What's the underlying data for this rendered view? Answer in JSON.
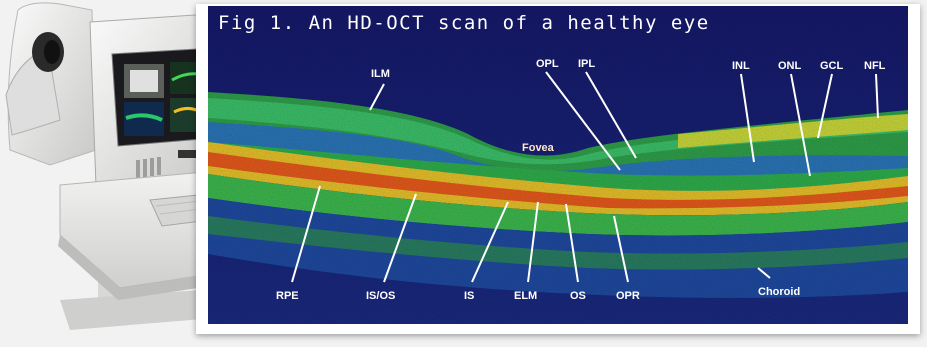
{
  "figure": {
    "title": "Fig 1. An HD-OCT scan of a healthy eye",
    "fovea_label": "Fovea",
    "choroid_label": "Choroid",
    "top_labels": [
      "ILM",
      "OPL",
      "IPL",
      "INL",
      "ONL",
      "GCL",
      "NFL"
    ],
    "bottom_labels": [
      "RPE",
      "IS/OS",
      "IS",
      "ELM",
      "OS",
      "OPR"
    ]
  },
  "colors": {
    "background": "#1b1f74",
    "label": "#ffffff",
    "fovea_label": "#ffe7c8",
    "device_body": "#e8e8e6"
  }
}
